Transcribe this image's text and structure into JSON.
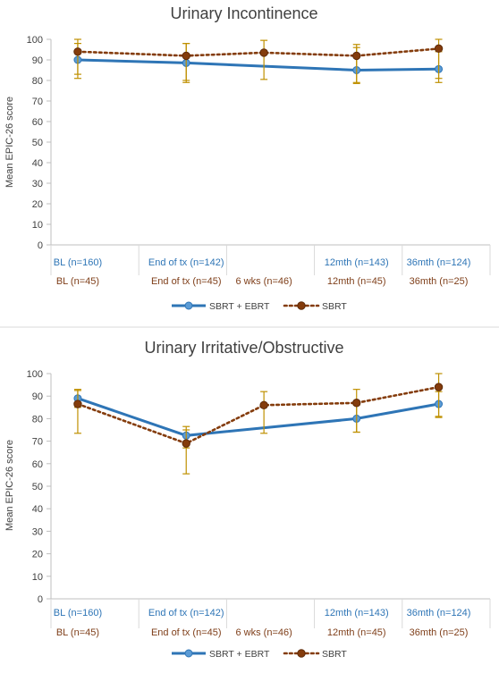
{
  "chart_data": [
    {
      "type": "line",
      "title": "Urinary Incontinence",
      "ylabel": "Mean EPIC-26 score",
      "ylim": [
        0,
        100
      ],
      "yticks": [
        0,
        10,
        20,
        30,
        40,
        50,
        60,
        70,
        80,
        90,
        100
      ],
      "x_positions": [
        "BL",
        "End of tx",
        "6 wks",
        "12mth",
        "36mth"
      ],
      "categories_row1": [
        "BL (n=160)",
        "End of tx (n=142)",
        "",
        "12mth (n=143)",
        "36mth (n=124)"
      ],
      "categories_row2": [
        "BL (n=45)",
        "End of tx (n=45)",
        "6 wks (n=46)",
        "12mth (n=45)",
        "36mth (n=25)"
      ],
      "series": [
        {
          "name": "SBRT + EBRT",
          "color": "#2e75b6",
          "style": "solid",
          "marker": "circle",
          "values": [
            90,
            88.5,
            null,
            85,
            85.5
          ],
          "error_low": [
            83,
            79,
            null,
            78.5,
            79
          ],
          "error_high": [
            98,
            98,
            null,
            96,
            94
          ]
        },
        {
          "name": "SBRT",
          "color": "#843c0c",
          "style": "dotted",
          "marker": "circle",
          "values": [
            94,
            92,
            93.5,
            92,
            95.5
          ],
          "error_low": [
            81,
            80,
            80.5,
            79,
            81
          ],
          "error_high": [
            100,
            98,
            99.5,
            97.5,
            100
          ]
        }
      ],
      "legend_position": "bottom"
    },
    {
      "type": "line",
      "title": "Urinary Irritative/Obstructive",
      "ylabel": "Mean EPIC-26 score",
      "ylim": [
        0,
        100
      ],
      "yticks": [
        0,
        10,
        20,
        30,
        40,
        50,
        60,
        70,
        80,
        90,
        100
      ],
      "x_positions": [
        "BL",
        "End of tx",
        "6 wks",
        "12mth",
        "36mth"
      ],
      "categories_row1": [
        "BL (n=160)",
        "End of tx (n=142)",
        "",
        "12mth (n=143)",
        "36mth (n=124)"
      ],
      "categories_row2": [
        "BL (n=45)",
        "End of tx (n=45)",
        "6 wks (n=46)",
        "12mth (n=45)",
        "36mth (n=25)"
      ],
      "series": [
        {
          "name": "SBRT + EBRT",
          "color": "#2e75b6",
          "style": "solid",
          "marker": "circle",
          "values": [
            89,
            72.5,
            null,
            80,
            86.5
          ],
          "error_low": [
            85,
            67,
            null,
            74,
            81
          ],
          "error_high": [
            93,
            76.5,
            null,
            86,
            92
          ]
        },
        {
          "name": "SBRT",
          "color": "#843c0c",
          "style": "dotted",
          "marker": "circle",
          "values": [
            86.5,
            69,
            86,
            87,
            94
          ],
          "error_low": [
            73.5,
            55.5,
            73.5,
            74,
            80.5
          ],
          "error_high": [
            92.5,
            75,
            92,
            93,
            100
          ]
        }
      ],
      "legend_position": "bottom"
    }
  ]
}
